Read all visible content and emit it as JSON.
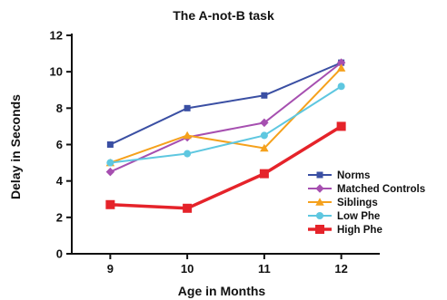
{
  "chart_data": {
    "type": "line",
    "title": "The A-not-B task",
    "xlabel": "Age in Months",
    "ylabel": "Delay in Seconds",
    "x": [
      9,
      10,
      11,
      12
    ],
    "xlim": [
      8.5,
      12.5
    ],
    "ylim": [
      0,
      12
    ],
    "yticks": [
      0,
      2,
      4,
      6,
      8,
      10,
      12
    ],
    "grid": false,
    "legend_position": "bottom-right",
    "series": [
      {
        "name": "Norms",
        "values": [
          6.0,
          8.0,
          8.7,
          10.5
        ],
        "color": "#3a4fa3",
        "marker": "square"
      },
      {
        "name": "Matched Controls",
        "values": [
          4.5,
          6.4,
          7.2,
          10.5
        ],
        "color": "#a64fb0",
        "marker": "diamond"
      },
      {
        "name": "Siblings",
        "values": [
          5.0,
          6.5,
          5.8,
          10.2
        ],
        "color": "#f5a11c",
        "marker": "triangle"
      },
      {
        "name": "Low Phe",
        "values": [
          5.0,
          5.5,
          6.5,
          9.2
        ],
        "color": "#5ec7e0",
        "marker": "circle"
      },
      {
        "name": "High Phe",
        "values": [
          2.7,
          2.5,
          4.4,
          7.0
        ],
        "color": "#e5232a",
        "marker": "square"
      }
    ]
  }
}
